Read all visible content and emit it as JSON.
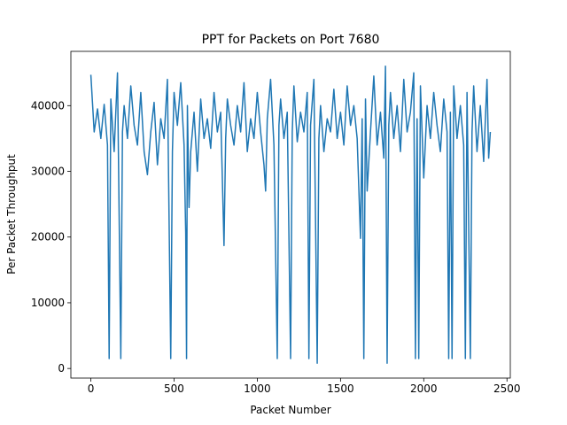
{
  "chart_data": {
    "type": "line",
    "title": "PPT for Packets on Port 7680",
    "x_label": "Packet Number",
    "y_label": "Per Packet Throughput",
    "xlim": [
      -120,
      2520
    ],
    "xticks": [
      0,
      500,
      1000,
      1500,
      2000,
      2500
    ],
    "ylim": [
      -1460,
      48260
    ],
    "yticks": [
      0,
      10000,
      20000,
      30000,
      40000
    ],
    "series": [
      {
        "color": "#1f77b4",
        "x": [
          0,
          20,
          40,
          60,
          80,
          100,
          110,
          120,
          140,
          160,
          180,
          190,
          200,
          220,
          240,
          260,
          280,
          300,
          320,
          340,
          360,
          380,
          400,
          420,
          440,
          460,
          480,
          490,
          500,
          520,
          540,
          560,
          570,
          575,
          580,
          590,
          600,
          620,
          640,
          660,
          680,
          700,
          720,
          740,
          760,
          780,
          800,
          810,
          820,
          840,
          860,
          880,
          900,
          920,
          940,
          960,
          980,
          1000,
          1020,
          1040,
          1050,
          1060,
          1080,
          1100,
          1120,
          1130,
          1140,
          1160,
          1180,
          1200,
          1210,
          1220,
          1240,
          1260,
          1280,
          1300,
          1310,
          1320,
          1340,
          1360,
          1370,
          1380,
          1400,
          1420,
          1440,
          1460,
          1480,
          1500,
          1520,
          1540,
          1560,
          1580,
          1600,
          1620,
          1630,
          1640,
          1650,
          1660,
          1680,
          1700,
          1720,
          1740,
          1760,
          1770,
          1780,
          1790,
          1800,
          1820,
          1840,
          1860,
          1880,
          1900,
          1920,
          1940,
          1950,
          1960,
          1970,
          1980,
          2000,
          2020,
          2040,
          2060,
          2080,
          2100,
          2120,
          2140,
          2150,
          2160,
          2170,
          2180,
          2200,
          2220,
          2240,
          2250,
          2260,
          2280,
          2290,
          2300,
          2320,
          2340,
          2360,
          2380,
          2390,
          2400
        ],
        "values": [
          44700,
          36000,
          39500,
          35000,
          40200,
          34000,
          1500,
          41000,
          33000,
          45000,
          1500,
          36000,
          40000,
          35000,
          43000,
          37000,
          34000,
          42000,
          33000,
          29500,
          36000,
          40500,
          31000,
          38000,
          35000,
          44000,
          1500,
          33000,
          42000,
          37000,
          43500,
          34000,
          20500,
          1500,
          40000,
          24500,
          33000,
          39000,
          30000,
          41000,
          35000,
          38000,
          33500,
          42000,
          36000,
          39000,
          18700,
          35000,
          41000,
          37000,
          34000,
          40000,
          36000,
          43500,
          33000,
          38000,
          35000,
          42000,
          36000,
          31000,
          27000,
          38000,
          44000,
          34000,
          1500,
          37000,
          41000,
          35000,
          39000,
          1500,
          36000,
          43000,
          34500,
          39000,
          36000,
          42000,
          1500,
          37000,
          44000,
          800,
          35000,
          40000,
          33000,
          38000,
          36000,
          42500,
          35000,
          39000,
          34000,
          43000,
          37000,
          40000,
          35000,
          19800,
          38000,
          1500,
          41000,
          27000,
          36000,
          44500,
          34000,
          39000,
          32000,
          46000,
          800,
          37000,
          42000,
          35000,
          40000,
          33000,
          44000,
          36000,
          39000,
          45000,
          1500,
          38000,
          1500,
          43000,
          29000,
          40000,
          35000,
          42000,
          37000,
          33000,
          41000,
          36000,
          1500,
          39000,
          1500,
          43000,
          35000,
          40000,
          34000,
          1500,
          42000,
          1500,
          36000,
          43000,
          33000,
          40000,
          31500,
          44000,
          32000,
          36000
        ]
      }
    ]
  }
}
